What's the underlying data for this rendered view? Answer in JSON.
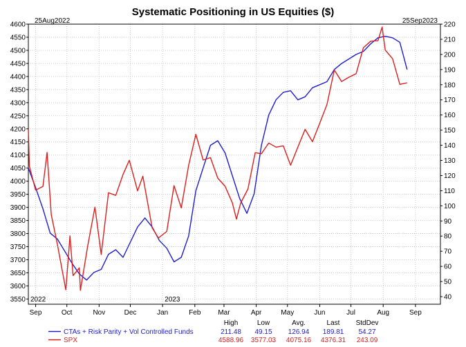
{
  "chart_data": {
    "type": "line",
    "title": "Systematic Positioning in US Equities ($)",
    "start_label": "25Aug2022",
    "end_label": "25Sep2023",
    "x_range": [
      "2022-08-25",
      "2023-09-25"
    ],
    "y_left": {
      "range": [
        3530,
        4600
      ],
      "ticks": [
        3550,
        3600,
        3650,
        3700,
        3750,
        3800,
        3850,
        3900,
        3950,
        4000,
        4050,
        4100,
        4150,
        4200,
        4250,
        4300,
        4350,
        4400,
        4450,
        4500,
        4550,
        4600
      ]
    },
    "y_right": {
      "range": [
        35,
        220
      ],
      "ticks": [
        40,
        50,
        60,
        70,
        80,
        90,
        100,
        110,
        120,
        130,
        140,
        150,
        160,
        170,
        180,
        190,
        200,
        210,
        220
      ]
    },
    "x_ticks": [
      {
        "date": "2022-09-01",
        "label": "Sep"
      },
      {
        "date": "2022-10-01",
        "label": "Oct"
      },
      {
        "date": "2022-11-01",
        "label": "Nov"
      },
      {
        "date": "2022-12-01",
        "label": "Dec"
      },
      {
        "date": "2023-01-01",
        "label": "Jan"
      },
      {
        "date": "2023-02-01",
        "label": "Feb"
      },
      {
        "date": "2023-03-01",
        "label": "Mar"
      },
      {
        "date": "2023-04-01",
        "label": "Apr"
      },
      {
        "date": "2023-05-01",
        "label": "May"
      },
      {
        "date": "2023-06-01",
        "label": "Jun"
      },
      {
        "date": "2023-07-01",
        "label": "Jul"
      },
      {
        "date": "2023-08-01",
        "label": "Aug"
      },
      {
        "date": "2023-09-01",
        "label": "Sep"
      }
    ],
    "year_labels": [
      {
        "date": "2022-08-25",
        "label": "2022"
      },
      {
        "date": "2023-01-01",
        "label": "2023"
      }
    ],
    "grid": true,
    "series": [
      {
        "name": "CTAs + Risk Parity + Vol Controlled Funds",
        "axis": "right",
        "color": "#1c1cd0",
        "points": [
          [
            "2022-08-25",
            125
          ],
          [
            "2022-09-01",
            112
          ],
          [
            "2022-09-08",
            98
          ],
          [
            "2022-09-15",
            82
          ],
          [
            "2022-09-22",
            78
          ],
          [
            "2022-09-29",
            70
          ],
          [
            "2022-10-06",
            62
          ],
          [
            "2022-10-13",
            55
          ],
          [
            "2022-10-20",
            51
          ],
          [
            "2022-10-27",
            56
          ],
          [
            "2022-11-03",
            58
          ],
          [
            "2022-11-10",
            68
          ],
          [
            "2022-11-17",
            71
          ],
          [
            "2022-11-24",
            66
          ],
          [
            "2022-12-01",
            76
          ],
          [
            "2022-12-08",
            86
          ],
          [
            "2022-12-15",
            92
          ],
          [
            "2022-12-22",
            86
          ],
          [
            "2022-12-29",
            77
          ],
          [
            "2023-01-05",
            72
          ],
          [
            "2023-01-12",
            63
          ],
          [
            "2023-01-19",
            66
          ],
          [
            "2023-01-26",
            80
          ],
          [
            "2023-02-02",
            110
          ],
          [
            "2023-02-09",
            125
          ],
          [
            "2023-02-16",
            140
          ],
          [
            "2023-02-23",
            143
          ],
          [
            "2023-03-02",
            135
          ],
          [
            "2023-03-09",
            120
          ],
          [
            "2023-03-16",
            105
          ],
          [
            "2023-03-23",
            95
          ],
          [
            "2023-03-30",
            108
          ],
          [
            "2023-04-06",
            140
          ],
          [
            "2023-04-13",
            160
          ],
          [
            "2023-04-20",
            170
          ],
          [
            "2023-04-27",
            175
          ],
          [
            "2023-05-04",
            176
          ],
          [
            "2023-05-11",
            170
          ],
          [
            "2023-05-18",
            172
          ],
          [
            "2023-05-25",
            178
          ],
          [
            "2023-06-01",
            180
          ],
          [
            "2023-06-08",
            182
          ],
          [
            "2023-06-15",
            190
          ],
          [
            "2023-06-22",
            194
          ],
          [
            "2023-06-29",
            197
          ],
          [
            "2023-07-06",
            200
          ],
          [
            "2023-07-13",
            202
          ],
          [
            "2023-07-20",
            207
          ],
          [
            "2023-07-27",
            211
          ],
          [
            "2023-08-03",
            212
          ],
          [
            "2023-08-10",
            211
          ],
          [
            "2023-08-17",
            208
          ],
          [
            "2023-08-24",
            190
          ]
        ]
      },
      {
        "name": "SPX",
        "axis": "left",
        "color": "#dd1c1c",
        "points": [
          [
            "2022-08-25",
            4199
          ],
          [
            "2022-08-26",
            4057
          ],
          [
            "2022-09-01",
            3966
          ],
          [
            "2022-09-08",
            3980
          ],
          [
            "2022-09-12",
            4110
          ],
          [
            "2022-09-16",
            3873
          ],
          [
            "2022-09-22",
            3757
          ],
          [
            "2022-09-30",
            3585
          ],
          [
            "2022-10-04",
            3791
          ],
          [
            "2022-10-07",
            3639
          ],
          [
            "2022-10-13",
            3669
          ],
          [
            "2022-10-14",
            3583
          ],
          [
            "2022-10-21",
            3752
          ],
          [
            "2022-10-28",
            3901
          ],
          [
            "2022-11-03",
            3720
          ],
          [
            "2022-11-10",
            3956
          ],
          [
            "2022-11-17",
            3946
          ],
          [
            "2022-11-24",
            4026
          ],
          [
            "2022-11-30",
            4080
          ],
          [
            "2022-12-08",
            3963
          ],
          [
            "2022-12-13",
            4019
          ],
          [
            "2022-12-22",
            3822
          ],
          [
            "2022-12-28",
            3783
          ],
          [
            "2023-01-05",
            3808
          ],
          [
            "2023-01-12",
            3983
          ],
          [
            "2023-01-19",
            3898
          ],
          [
            "2023-01-26",
            4060
          ],
          [
            "2023-02-02",
            4179
          ],
          [
            "2023-02-09",
            4081
          ],
          [
            "2023-02-16",
            4090
          ],
          [
            "2023-02-23",
            4012
          ],
          [
            "2023-03-02",
            3981
          ],
          [
            "2023-03-09",
            3918
          ],
          [
            "2023-03-13",
            3855
          ],
          [
            "2023-03-17",
            3916
          ],
          [
            "2023-03-24",
            3970
          ],
          [
            "2023-03-31",
            4109
          ],
          [
            "2023-04-06",
            4105
          ],
          [
            "2023-04-13",
            4146
          ],
          [
            "2023-04-20",
            4130
          ],
          [
            "2023-04-27",
            4135
          ],
          [
            "2023-05-04",
            4061
          ],
          [
            "2023-05-11",
            4130
          ],
          [
            "2023-05-18",
            4198
          ],
          [
            "2023-05-25",
            4151
          ],
          [
            "2023-06-01",
            4221
          ],
          [
            "2023-06-08",
            4293
          ],
          [
            "2023-06-15",
            4425
          ],
          [
            "2023-06-22",
            4381
          ],
          [
            "2023-06-29",
            4397
          ],
          [
            "2023-07-06",
            4411
          ],
          [
            "2023-07-13",
            4510
          ],
          [
            "2023-07-20",
            4535
          ],
          [
            "2023-07-27",
            4537
          ],
          [
            "2023-07-31",
            4589
          ],
          [
            "2023-08-03",
            4501
          ],
          [
            "2023-08-10",
            4468
          ],
          [
            "2023-08-17",
            4370
          ],
          [
            "2023-08-24",
            4376
          ]
        ]
      }
    ],
    "legend": {
      "headers": [
        "High",
        "Low",
        "Avg.",
        "Last",
        "StdDev"
      ],
      "rows": [
        {
          "name": "CTAs + Risk Parity + Vol Controlled Funds",
          "color": "#1c1cd0",
          "values": [
            "211.48",
            "49.15",
            "126.94",
            "189.81",
            "54.27"
          ]
        },
        {
          "name": "SPX",
          "color": "#dd1c1c",
          "values": [
            "4588.96",
            "3577.03",
            "4075.16",
            "4376.31",
            "243.09"
          ]
        }
      ]
    }
  }
}
